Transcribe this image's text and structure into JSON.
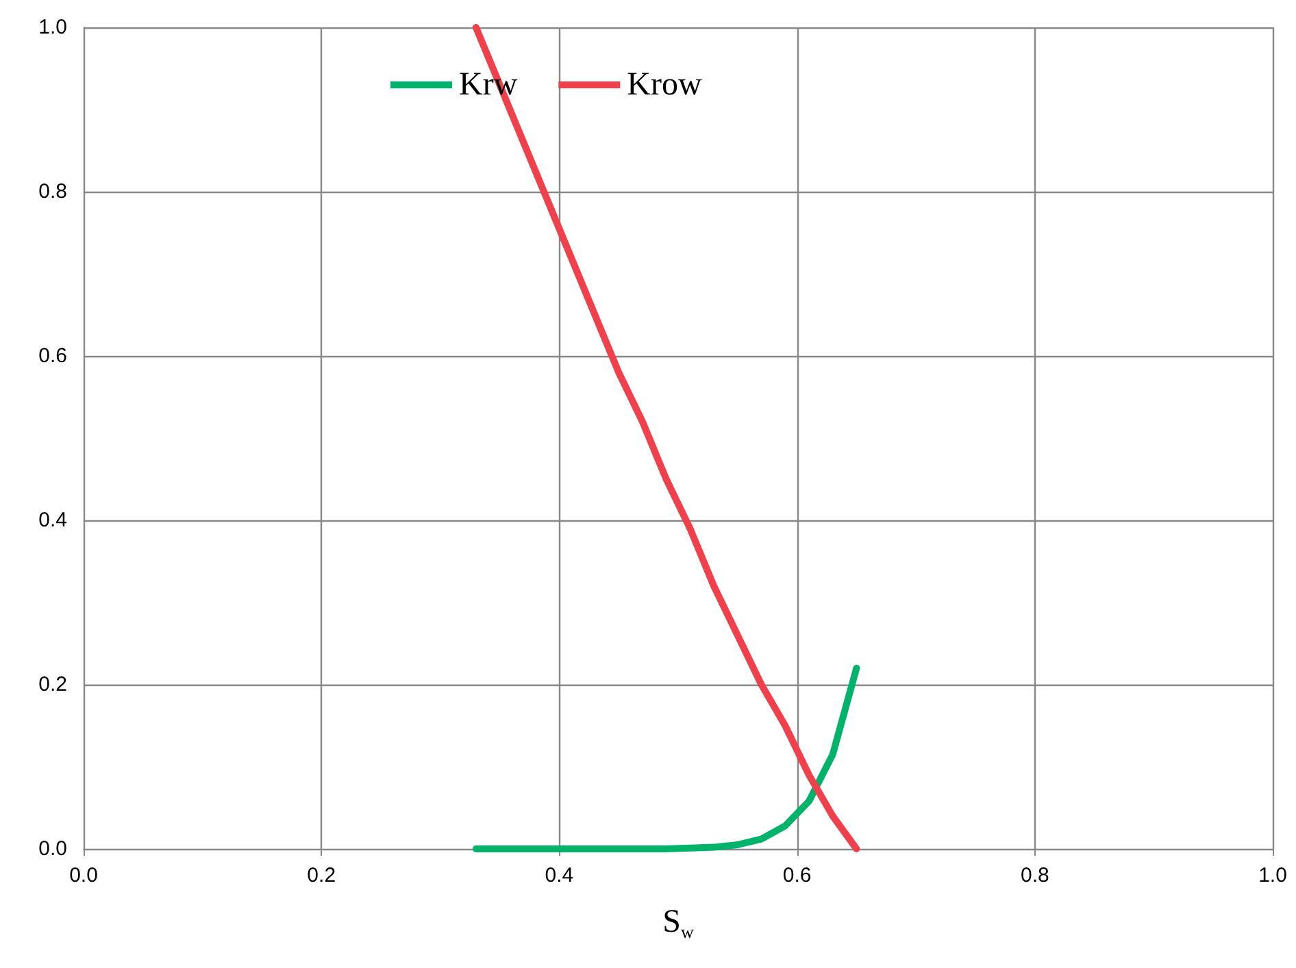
{
  "chart_data": {
    "type": "line",
    "xlabel": "S$_{w}$",
    "x": [
      0.33,
      0.35,
      0.37,
      0.39,
      0.41,
      0.43,
      0.45,
      0.47,
      0.49,
      0.51,
      0.53,
      0.55,
      0.57,
      0.59,
      0.61,
      0.63,
      0.65
    ],
    "series": [
      {
        "name": "Krw",
        "color": "#00b36b",
        "values": [
          0,
          0,
          0,
          0,
          0,
          0,
          0,
          0,
          0,
          0.001,
          0.002,
          0.005,
          0.012,
          0.028,
          0.058,
          0.115,
          0.22
        ]
      },
      {
        "name": "Krow",
        "color": "#f0404c",
        "values": [
          1,
          0.93,
          0.86,
          0.79,
          0.72,
          0.65,
          0.58,
          0.52,
          0.45,
          0.39,
          0.32,
          0.26,
          0.2,
          0.15,
          0.09,
          0.04,
          0
        ]
      }
    ],
    "xlim": [
      0,
      1
    ],
    "xticks": [
      {
        "value": 0,
        "label": "0.0"
      },
      {
        "value": 0.2,
        "label": "0.2"
      },
      {
        "value": 0.4,
        "label": "0.4"
      },
      {
        "value": 0.6,
        "label": "0.6"
      },
      {
        "value": 0.8,
        "label": "0.8"
      },
      {
        "value": 1,
        "label": "1.0"
      }
    ],
    "ylim": [
      0,
      1
    ],
    "yticks": [
      {
        "value": 0,
        "label": "0.0"
      },
      {
        "value": 0.2,
        "label": "0.2"
      },
      {
        "value": 0.4,
        "label": "0.4"
      },
      {
        "value": 0.6,
        "label": "0.6"
      },
      {
        "value": 0.8,
        "label": "0.8"
      },
      {
        "value": 1,
        "label": "1.0"
      }
    ],
    "grid": true,
    "legend": "top",
    "marker": "none",
    "line_style": "solid"
  }
}
